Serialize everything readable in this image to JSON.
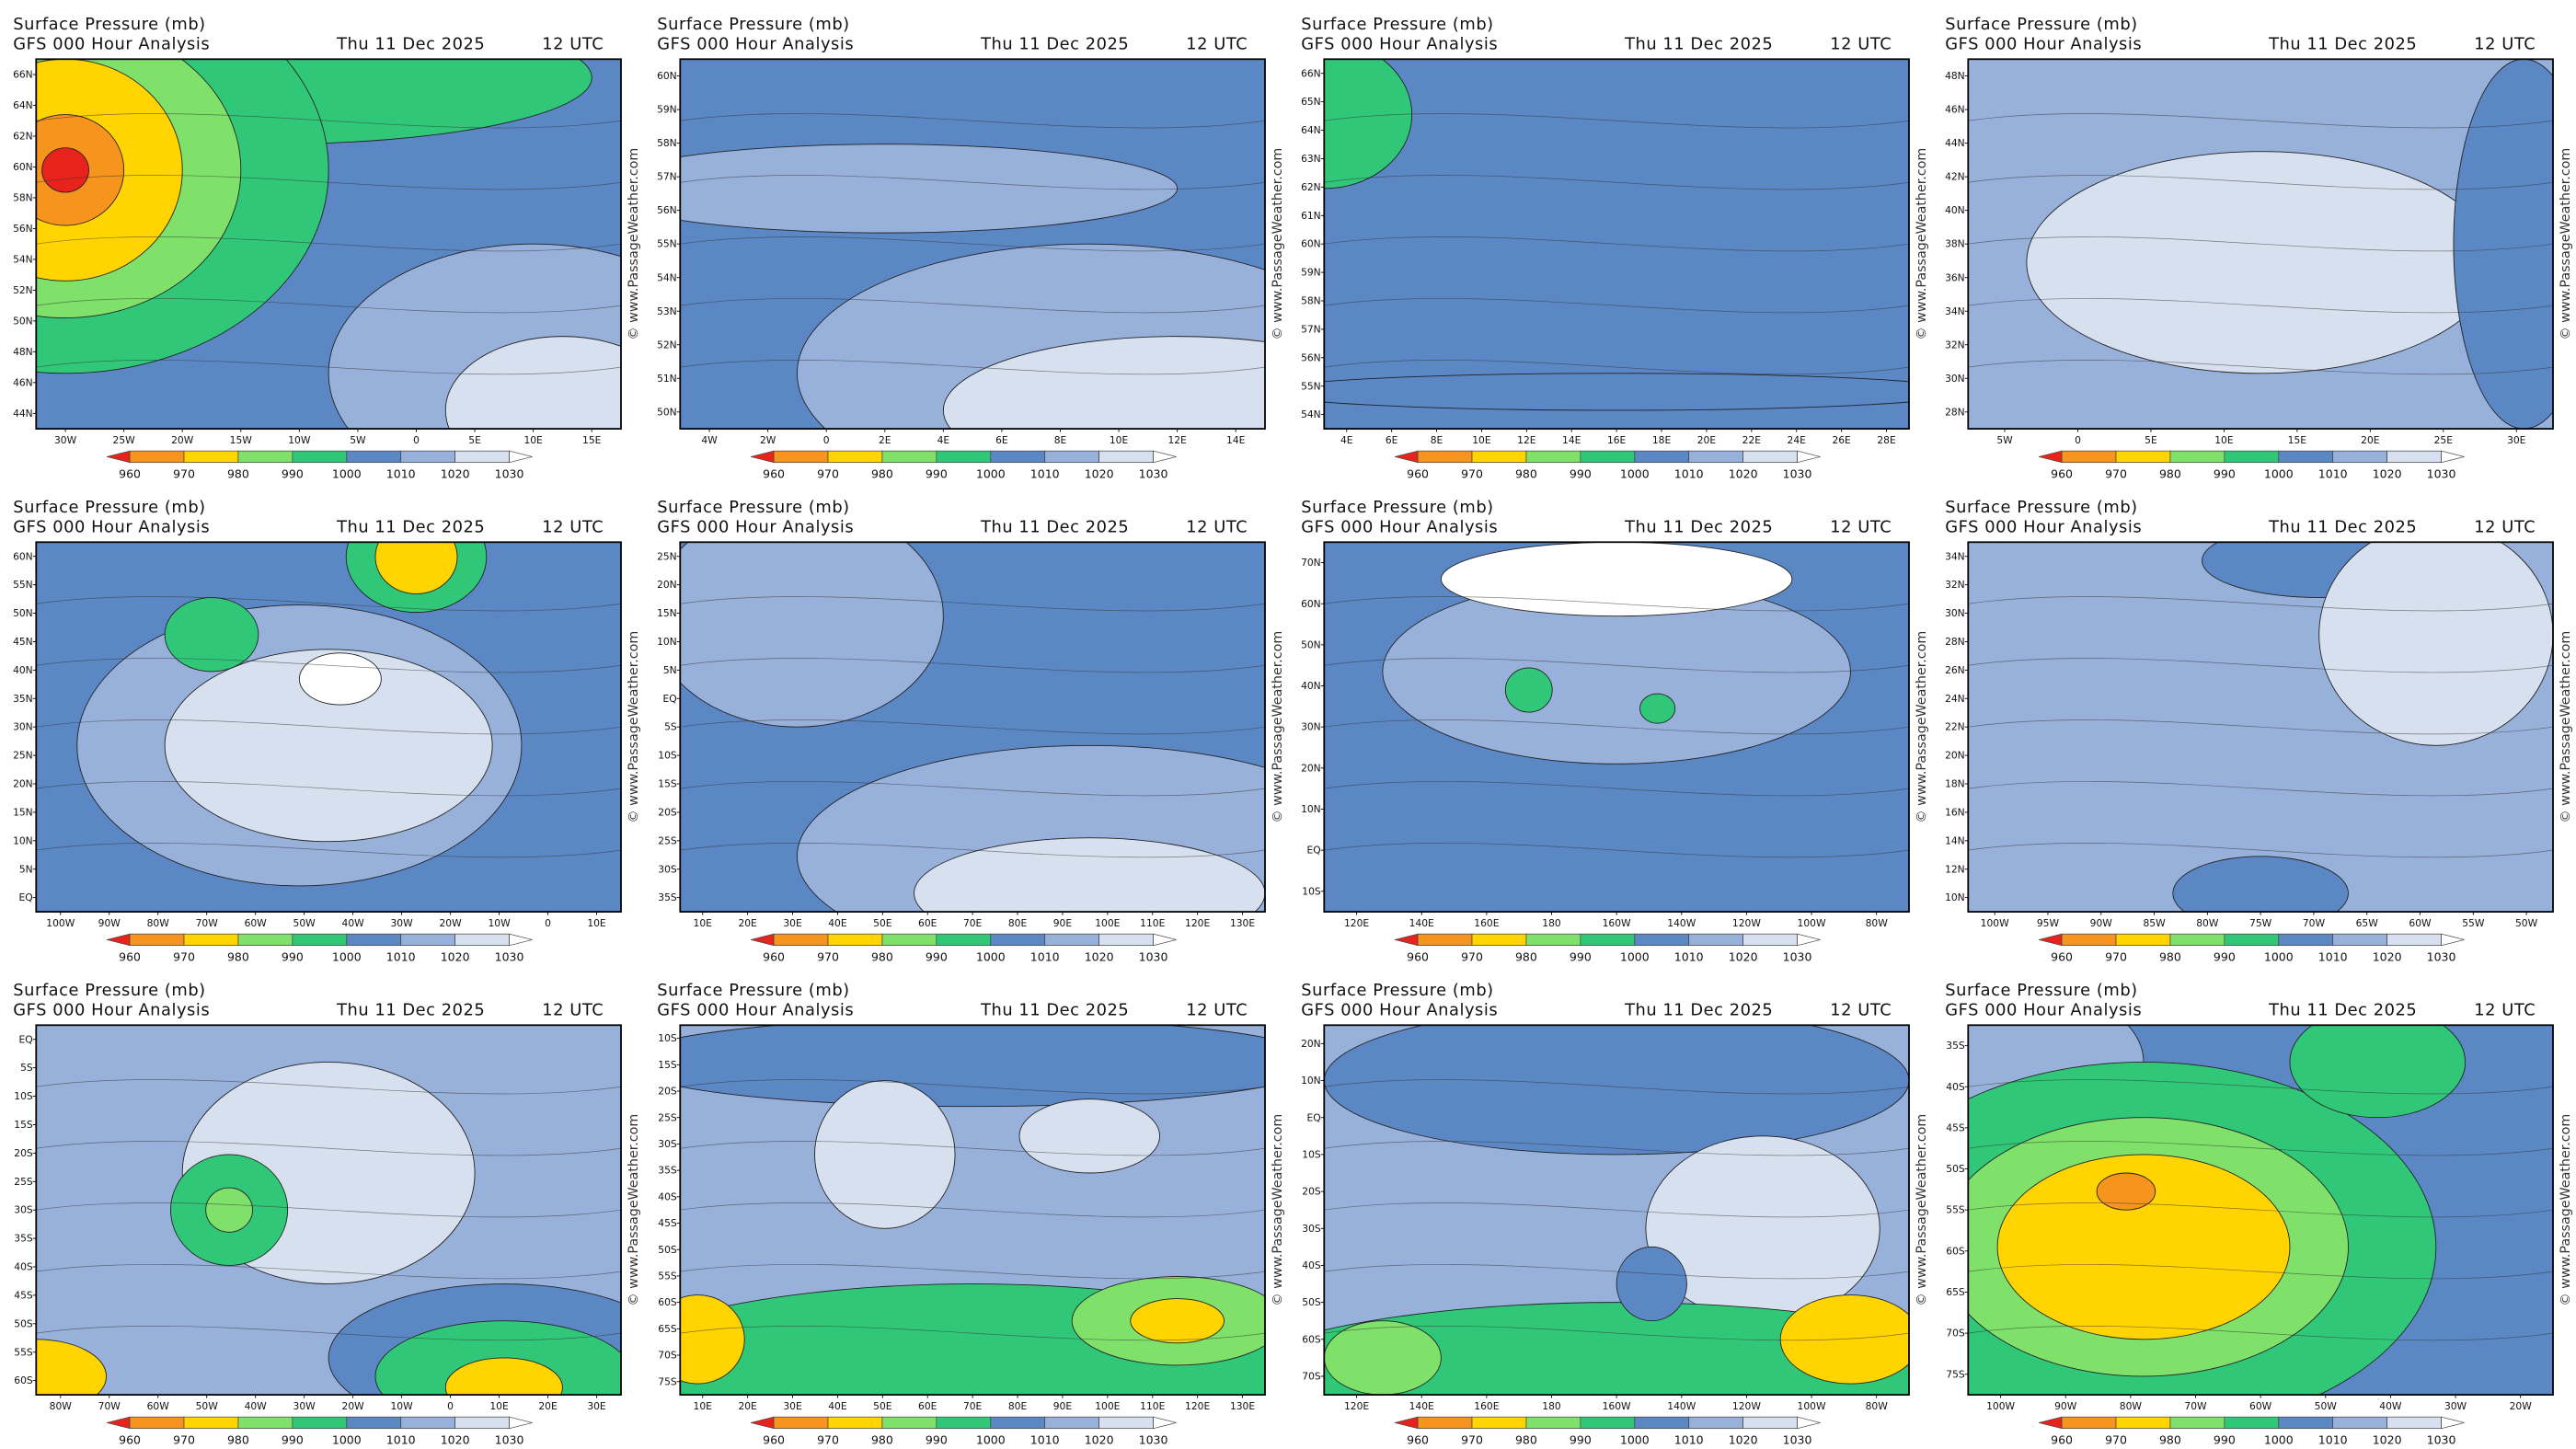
{
  "header": {
    "title": "Surface Pressure (mb)",
    "model": "GFS 000 Hour Analysis",
    "date": "Thu 11 Dec 2025",
    "time": "12 UTC"
  },
  "colorbar": [
    960,
    970,
    980,
    990,
    1000,
    1010,
    1020,
    1030
  ],
  "watermark": "© www.PassageWeather.com",
  "panels": [
    {
      "xticks": [
        "30W",
        "25W",
        "20W",
        "15W",
        "10W",
        "5W",
        "0",
        "5E",
        "10E",
        "15E"
      ],
      "yticks": [
        "66N",
        "64N",
        "62N",
        "60N",
        "58N",
        "56N",
        "54N",
        "52N",
        "50N",
        "48N",
        "46N",
        "44N"
      ]
    },
    {
      "xticks": [
        "4W",
        "2W",
        "0",
        "2E",
        "4E",
        "6E",
        "8E",
        "10E",
        "12E",
        "14E"
      ],
      "yticks": [
        "60N",
        "59N",
        "58N",
        "57N",
        "56N",
        "55N",
        "54N",
        "53N",
        "52N",
        "51N",
        "50N"
      ]
    },
    {
      "xticks": [
        "4E",
        "6E",
        "8E",
        "10E",
        "12E",
        "14E",
        "16E",
        "18E",
        "20E",
        "22E",
        "24E",
        "26E",
        "28E"
      ],
      "yticks": [
        "66N",
        "65N",
        "64N",
        "63N",
        "62N",
        "61N",
        "60N",
        "59N",
        "58N",
        "57N",
        "56N",
        "55N",
        "54N"
      ]
    },
    {
      "xticks": [
        "5W",
        "0",
        "5E",
        "10E",
        "15E",
        "20E",
        "25E",
        "30E"
      ],
      "yticks": [
        "48N",
        "46N",
        "44N",
        "42N",
        "40N",
        "38N",
        "36N",
        "34N",
        "32N",
        "30N",
        "28N"
      ]
    },
    {
      "xticks": [
        "100W",
        "90W",
        "80W",
        "70W",
        "60W",
        "50W",
        "40W",
        "30W",
        "20W",
        "10W",
        "0",
        "10E"
      ],
      "yticks": [
        "60N",
        "55N",
        "50N",
        "45N",
        "40N",
        "35N",
        "30N",
        "25N",
        "20N",
        "15N",
        "10N",
        "5N",
        "EQ"
      ]
    },
    {
      "xticks": [
        "10E",
        "20E",
        "30E",
        "40E",
        "50E",
        "60E",
        "70E",
        "80E",
        "90E",
        "100E",
        "110E",
        "120E",
        "130E"
      ],
      "yticks": [
        "25N",
        "20N",
        "15N",
        "10N",
        "5N",
        "EQ",
        "5S",
        "10S",
        "15S",
        "20S",
        "25S",
        "30S",
        "35S"
      ]
    },
    {
      "xticks": [
        "120E",
        "140E",
        "160E",
        "180",
        "160W",
        "140W",
        "120W",
        "100W",
        "80W"
      ],
      "yticks": [
        "70N",
        "60N",
        "50N",
        "40N",
        "30N",
        "20N",
        "10N",
        "EQ",
        "10S"
      ]
    },
    {
      "xticks": [
        "100W",
        "95W",
        "90W",
        "85W",
        "80W",
        "75W",
        "70W",
        "65W",
        "60W",
        "55W",
        "50W"
      ],
      "yticks": [
        "34N",
        "32N",
        "30N",
        "28N",
        "26N",
        "24N",
        "22N",
        "20N",
        "18N",
        "16N",
        "14N",
        "12N",
        "10N"
      ]
    },
    {
      "xticks": [
        "80W",
        "70W",
        "60W",
        "50W",
        "40W",
        "30W",
        "20W",
        "10W",
        "0",
        "10E",
        "20E",
        "30E"
      ],
      "yticks": [
        "EQ",
        "5S",
        "10S",
        "15S",
        "20S",
        "25S",
        "30S",
        "35S",
        "40S",
        "45S",
        "50S",
        "55S",
        "60S"
      ]
    },
    {
      "xticks": [
        "10E",
        "20E",
        "30E",
        "40E",
        "50E",
        "60E",
        "70E",
        "80E",
        "90E",
        "100E",
        "110E",
        "120E",
        "130E"
      ],
      "yticks": [
        "10S",
        "15S",
        "20S",
        "25S",
        "30S",
        "35S",
        "40S",
        "45S",
        "50S",
        "55S",
        "60S",
        "65S",
        "70S",
        "75S"
      ]
    },
    {
      "xticks": [
        "120E",
        "140E",
        "160E",
        "180",
        "160W",
        "140W",
        "120W",
        "100W",
        "80W"
      ],
      "yticks": [
        "20N",
        "10N",
        "EQ",
        "10S",
        "20S",
        "30S",
        "40S",
        "50S",
        "60S",
        "70S"
      ]
    },
    {
      "xticks": [
        "100W",
        "90W",
        "80W",
        "70W",
        "60W",
        "50W",
        "40W",
        "30W",
        "20W"
      ],
      "yticks": [
        "35S",
        "40S",
        "45S",
        "50S",
        "55S",
        "60S",
        "65S",
        "70S",
        "75S"
      ]
    }
  ]
}
